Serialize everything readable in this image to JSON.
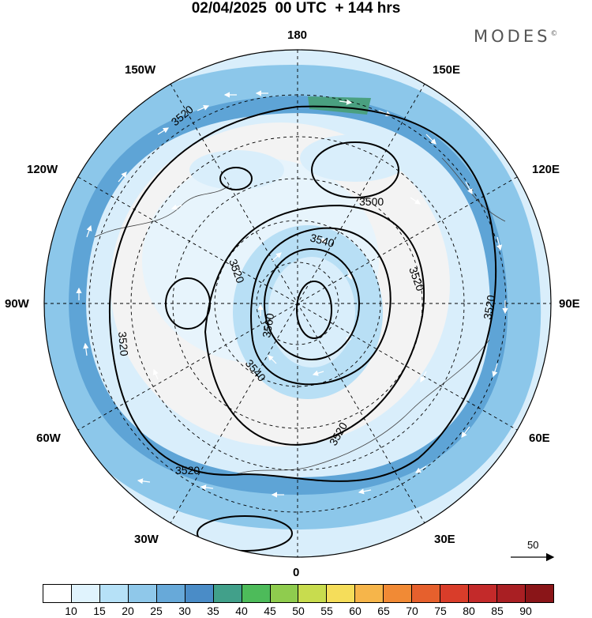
{
  "title": "02/04/2025  00 UTC  + 144 hrs",
  "brand": {
    "name": "MODES",
    "mark": "©"
  },
  "longitude_labels": {
    "top": "180",
    "bottom": "0",
    "left": "90W",
    "right": "90E",
    "upper_left": "150W",
    "upper_right": "150E",
    "mid_upper_left": "120W",
    "mid_upper_right": "120E",
    "mid_lower_left": "60W",
    "mid_lower_right": "60E",
    "lower_left": "30W",
    "lower_right": "30E"
  },
  "contour_labels": [
    "3520",
    "3500",
    "3540",
    "3520",
    "3520",
    "3520",
    "3560",
    "3540",
    "3520",
    "3520",
    "3520"
  ],
  "wind_reference": {
    "value": "50"
  },
  "colorbar": {
    "colors": [
      "#ffffff",
      "#e0f3fd",
      "#b6e1f7",
      "#8fc8ea",
      "#67a9d9",
      "#4a8cc7",
      "#41a08a",
      "#4dbb5a",
      "#8fcc4e",
      "#c8dc4e",
      "#f5dd5a",
      "#f6b54a",
      "#f18a35",
      "#e6602d",
      "#d93d2a",
      "#c32a2a",
      "#a91f23",
      "#8a1518"
    ],
    "ticks": [
      "10",
      "15",
      "20",
      "25",
      "30",
      "35",
      "40",
      "45",
      "50",
      "55",
      "60",
      "65",
      "70",
      "75",
      "80",
      "85",
      "90"
    ]
  }
}
